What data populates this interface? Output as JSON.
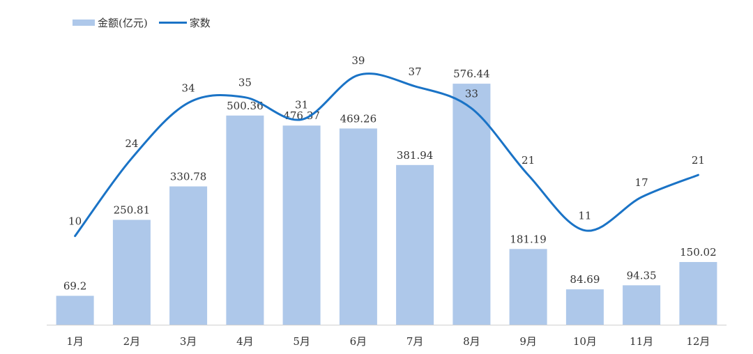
{
  "chart_data": {
    "type": "bar",
    "categories": [
      "1月",
      "2月",
      "3月",
      "4月",
      "5月",
      "6月",
      "7月",
      "8月",
      "9月",
      "10月",
      "11月",
      "12月"
    ],
    "series": [
      {
        "name": "金额(亿元)",
        "type": "bar",
        "axis": "left",
        "color": "#aec8ea",
        "values": [
          69.2,
          250.81,
          330.78,
          500.36,
          476.37,
          469.26,
          381.94,
          576.44,
          181.19,
          84.69,
          94.35,
          150.02
        ],
        "labels": [
          "69.2",
          "250.81",
          "330.78",
          "500.36",
          "476.37",
          "469.26",
          "381.94",
          "576.44",
          "181.19",
          "84.69",
          "94.35",
          "150.02"
        ]
      },
      {
        "name": "家数",
        "type": "line",
        "axis": "right",
        "color": "#1a73c6",
        "values": [
          10,
          24,
          34,
          35,
          31,
          39,
          37,
          33,
          21,
          11,
          17,
          21
        ],
        "labels": [
          "10",
          "24",
          "34",
          "35",
          "31",
          "39",
          "37",
          "33",
          "21",
          "11",
          "17",
          "21"
        ]
      }
    ],
    "ylim": [
      0,
      650
    ],
    "y2lim": [
      -6,
      43
    ],
    "legend_position": "top-left",
    "grid": false
  }
}
